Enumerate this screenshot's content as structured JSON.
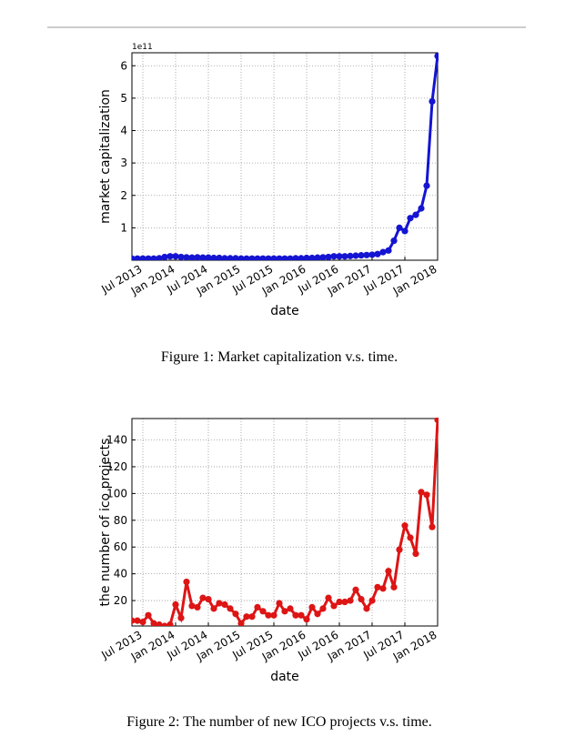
{
  "captions": [
    "Figure 1: Market capitalization v.s. time.",
    "Figure 2: The number of new ICO projects v.s. time."
  ],
  "chart_data": [
    {
      "type": "line",
      "ylabel": "market capitalization",
      "xlabel": "date",
      "offset_label": "1e11",
      "x": [
        "2013-05",
        "2013-06",
        "2013-07",
        "2013-08",
        "2013-09",
        "2013-10",
        "2013-11",
        "2013-12",
        "2014-01",
        "2014-02",
        "2014-03",
        "2014-04",
        "2014-05",
        "2014-06",
        "2014-07",
        "2014-08",
        "2014-09",
        "2014-10",
        "2014-11",
        "2014-12",
        "2015-01",
        "2015-02",
        "2015-03",
        "2015-04",
        "2015-05",
        "2015-06",
        "2015-07",
        "2015-08",
        "2015-09",
        "2015-10",
        "2015-11",
        "2015-12",
        "2016-01",
        "2016-02",
        "2016-03",
        "2016-04",
        "2016-05",
        "2016-06",
        "2016-07",
        "2016-08",
        "2016-09",
        "2016-10",
        "2016-11",
        "2016-12",
        "2017-01",
        "2017-02",
        "2017-03",
        "2017-04",
        "2017-05",
        "2017-06",
        "2017-07",
        "2017-08",
        "2017-09",
        "2017-10",
        "2017-11",
        "2017-12",
        "2018-01"
      ],
      "series": [
        {
          "name": "market capitalization",
          "color": "#1414d2",
          "values": [
            0.05,
            0.05,
            0.05,
            0.05,
            0.05,
            0.06,
            0.1,
            0.12,
            0.12,
            0.1,
            0.09,
            0.08,
            0.09,
            0.08,
            0.08,
            0.07,
            0.07,
            0.06,
            0.06,
            0.06,
            0.05,
            0.05,
            0.05,
            0.05,
            0.05,
            0.05,
            0.05,
            0.05,
            0.05,
            0.05,
            0.06,
            0.06,
            0.07,
            0.07,
            0.08,
            0.09,
            0.1,
            0.12,
            0.12,
            0.12,
            0.13,
            0.14,
            0.15,
            0.16,
            0.17,
            0.19,
            0.25,
            0.3,
            0.6,
            1.0,
            0.9,
            1.3,
            1.4,
            1.6,
            2.3,
            4.9,
            6.3
          ]
        }
      ],
      "xlim": [
        "2013-05",
        "2018-01"
      ],
      "xticks": [
        {
          "value": "2013-07",
          "label": "Jul 2013"
        },
        {
          "value": "2014-01",
          "label": "Jan 2014"
        },
        {
          "value": "2014-07",
          "label": "Jul 2014"
        },
        {
          "value": "2015-01",
          "label": "Jan 2015"
        },
        {
          "value": "2015-07",
          "label": "Jul 2015"
        },
        {
          "value": "2016-01",
          "label": "Jan 2016"
        },
        {
          "value": "2016-07",
          "label": "Jul 2016"
        },
        {
          "value": "2017-01",
          "label": "Jan 2017"
        },
        {
          "value": "2017-07",
          "label": "Jul 2017"
        },
        {
          "value": "2018-01",
          "label": "Jan 2018"
        }
      ],
      "ylim": [
        0,
        6.4
      ],
      "yticks": [
        1,
        2,
        3,
        4,
        5,
        6
      ],
      "grid": true
    },
    {
      "type": "line",
      "ylabel": "the number of ico projects",
      "xlabel": "date",
      "x": [
        "2013-05",
        "2013-06",
        "2013-07",
        "2013-08",
        "2013-09",
        "2013-10",
        "2013-11",
        "2013-12",
        "2014-01",
        "2014-02",
        "2014-03",
        "2014-04",
        "2014-05",
        "2014-06",
        "2014-07",
        "2014-08",
        "2014-09",
        "2014-10",
        "2014-11",
        "2014-12",
        "2015-01",
        "2015-02",
        "2015-03",
        "2015-04",
        "2015-05",
        "2015-06",
        "2015-07",
        "2015-08",
        "2015-09",
        "2015-10",
        "2015-11",
        "2015-12",
        "2016-01",
        "2016-02",
        "2016-03",
        "2016-04",
        "2016-05",
        "2016-06",
        "2016-07",
        "2016-08",
        "2016-09",
        "2016-10",
        "2016-11",
        "2016-12",
        "2017-01",
        "2017-02",
        "2017-03",
        "2017-04",
        "2017-05",
        "2017-06",
        "2017-07",
        "2017-08",
        "2017-09",
        "2017-10",
        "2017-11",
        "2017-12",
        "2018-01"
      ],
      "series": [
        {
          "name": "the number of ico projects",
          "color": "#dd1515",
          "values": [
            5,
            5,
            4,
            9,
            3,
            2,
            1,
            2,
            17,
            7,
            34,
            16,
            15,
            22,
            21,
            14,
            18,
            17,
            14,
            10,
            3,
            8,
            8,
            15,
            12,
            9,
            9,
            18,
            12,
            14,
            9,
            9,
            6,
            15,
            10,
            14,
            22,
            16,
            19,
            19,
            20,
            28,
            21,
            14,
            20,
            30,
            29,
            42,
            30,
            58,
            76,
            67,
            55,
            101,
            99,
            75,
            155
          ]
        }
      ],
      "xlim": [
        "2013-05",
        "2018-01"
      ],
      "xticks": [
        {
          "value": "2013-07",
          "label": "Jul 2013"
        },
        {
          "value": "2014-01",
          "label": "Jan 2014"
        },
        {
          "value": "2014-07",
          "label": "Jul 2014"
        },
        {
          "value": "2015-01",
          "label": "Jan 2015"
        },
        {
          "value": "2015-07",
          "label": "Jul 2015"
        },
        {
          "value": "2016-01",
          "label": "Jan 2016"
        },
        {
          "value": "2016-07",
          "label": "Jul 2016"
        },
        {
          "value": "2017-01",
          "label": "Jan 2017"
        },
        {
          "value": "2017-07",
          "label": "Jul 2017"
        },
        {
          "value": "2018-01",
          "label": "Jan 2018"
        }
      ],
      "ylim": [
        1,
        156
      ],
      "yticks": [
        20,
        40,
        60,
        80,
        100,
        120,
        140
      ],
      "grid": true
    }
  ]
}
